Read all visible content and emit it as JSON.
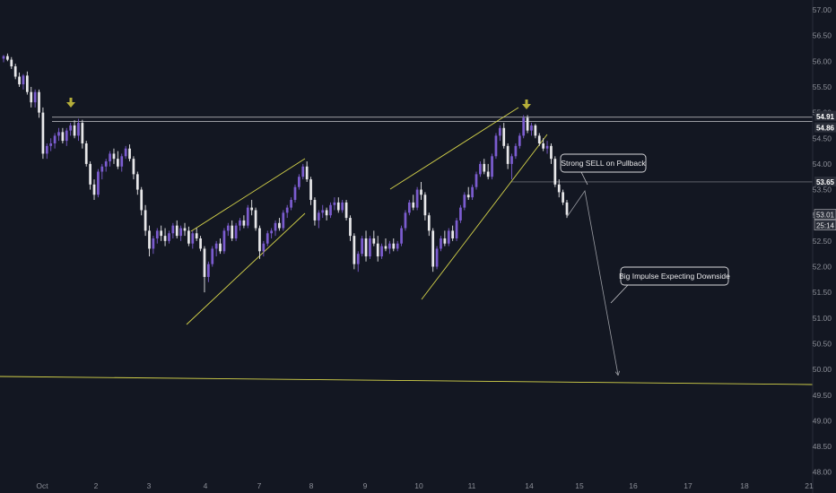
{
  "chart_data": {
    "type": "candlestick",
    "x_tick_labels": [
      "Oct",
      "2",
      "3",
      "4",
      "7",
      "8",
      "9",
      "10",
      "11",
      "14",
      "15",
      "16",
      "17",
      "18",
      "21"
    ],
    "y_tick_labels": [
      "48.00",
      "48.50",
      "49.00",
      "49.50",
      "50.00",
      "50.50",
      "51.00",
      "51.50",
      "52.00",
      "52.50",
      "53.00",
      "53.50",
      "54.00",
      "54.50",
      "55.00",
      "55.50",
      "56.00",
      "56.50",
      "57.00"
    ],
    "ylim": [
      48.0,
      57.0
    ],
    "price_labels": [
      {
        "value": 54.91,
        "label": "54.91",
        "style": "level"
      },
      {
        "value": 54.86,
        "label": "54.86",
        "style": "level"
      },
      {
        "value": 53.65,
        "label": "53.65",
        "style": "level"
      },
      {
        "value": 53.01,
        "label": "53.01",
        "style": "last"
      }
    ],
    "countdown_label": "25:14",
    "annotations": [
      {
        "id": "strong-sell",
        "text": "Strong SELL on Pullback"
      },
      {
        "id": "big-impulse",
        "text": "Big Impulse Expecting Downside"
      }
    ],
    "colors": {
      "background": "#131722",
      "bull_candle": "#7b5ccf",
      "bear_candle": "#e8e8ea",
      "trendline": "#d6d44a",
      "level_line": "#c8c8cc",
      "marker": "#b5ae3a",
      "axis_text": "#8c8f98"
    },
    "candles": [
      [
        56.05,
        56.12,
        55.98,
        56.1
      ],
      [
        56.1,
        56.15,
        56.0,
        56.03
      ],
      [
        56.03,
        56.08,
        55.85,
        55.9
      ],
      [
        55.9,
        55.95,
        55.65,
        55.7
      ],
      [
        55.7,
        55.78,
        55.5,
        55.55
      ],
      [
        55.55,
        55.75,
        55.45,
        55.72
      ],
      [
        55.72,
        55.8,
        55.35,
        55.4
      ],
      [
        55.4,
        55.5,
        55.1,
        55.2
      ],
      [
        55.2,
        55.45,
        55.1,
        55.4
      ],
      [
        55.4,
        55.45,
        54.9,
        55.0
      ],
      [
        55.0,
        55.1,
        54.1,
        54.2
      ],
      [
        54.2,
        54.4,
        54.1,
        54.35
      ],
      [
        54.35,
        54.5,
        54.25,
        54.4
      ],
      [
        54.4,
        54.6,
        54.3,
        54.55
      ],
      [
        54.55,
        54.7,
        54.45,
        54.62
      ],
      [
        54.62,
        54.7,
        54.4,
        54.45
      ],
      [
        54.45,
        54.7,
        54.35,
        54.65
      ],
      [
        54.65,
        54.8,
        54.55,
        54.75
      ],
      [
        54.75,
        54.85,
        54.5,
        54.55
      ],
      [
        54.55,
        54.88,
        54.45,
        54.8
      ],
      [
        54.8,
        54.86,
        54.3,
        54.4
      ],
      [
        54.4,
        54.45,
        53.95,
        54.0
      ],
      [
        54.0,
        54.05,
        53.5,
        53.6
      ],
      [
        53.6,
        53.7,
        53.3,
        53.4
      ],
      [
        53.4,
        53.9,
        53.35,
        53.85
      ],
      [
        53.85,
        54.0,
        53.7,
        53.95
      ],
      [
        53.95,
        54.1,
        53.85,
        54.05
      ],
      [
        54.05,
        54.25,
        53.95,
        54.2
      ],
      [
        54.2,
        54.3,
        54.0,
        54.1
      ],
      [
        54.1,
        54.25,
        53.9,
        53.95
      ],
      [
        53.95,
        54.2,
        53.85,
        54.15
      ],
      [
        54.15,
        54.35,
        54.1,
        54.3
      ],
      [
        54.3,
        54.38,
        54.05,
        54.1
      ],
      [
        54.1,
        54.15,
        53.7,
        53.8
      ],
      [
        53.8,
        53.85,
        53.4,
        53.5
      ],
      [
        53.5,
        53.55,
        53.0,
        53.1
      ],
      [
        53.1,
        53.2,
        52.6,
        52.7
      ],
      [
        52.7,
        52.8,
        52.2,
        52.35
      ],
      [
        52.35,
        52.6,
        52.25,
        52.55
      ],
      [
        52.55,
        52.75,
        52.45,
        52.7
      ],
      [
        52.7,
        52.8,
        52.5,
        52.6
      ],
      [
        52.6,
        52.75,
        52.4,
        52.5
      ],
      [
        52.5,
        52.7,
        52.45,
        52.65
      ],
      [
        52.65,
        52.85,
        52.55,
        52.8
      ],
      [
        52.8,
        52.9,
        52.55,
        52.6
      ],
      [
        52.6,
        52.8,
        52.5,
        52.75
      ],
      [
        52.75,
        52.85,
        52.6,
        52.7
      ],
      [
        52.7,
        52.78,
        52.4,
        52.45
      ],
      [
        52.45,
        52.7,
        52.35,
        52.65
      ],
      [
        52.65,
        52.75,
        52.5,
        52.55
      ],
      [
        52.55,
        52.6,
        52.3,
        52.35
      ],
      [
        52.35,
        52.4,
        51.5,
        51.8
      ],
      [
        51.8,
        52.1,
        51.7,
        52.05
      ],
      [
        52.05,
        52.4,
        52.0,
        52.35
      ],
      [
        52.35,
        52.5,
        52.2,
        52.45
      ],
      [
        52.45,
        52.55,
        52.25,
        52.3
      ],
      [
        52.3,
        52.75,
        52.25,
        52.7
      ],
      [
        52.7,
        52.85,
        52.6,
        52.8
      ],
      [
        52.8,
        52.9,
        52.5,
        52.55
      ],
      [
        52.55,
        52.85,
        52.5,
        52.8
      ],
      [
        52.8,
        52.95,
        52.7,
        52.9
      ],
      [
        52.9,
        53.0,
        52.75,
        52.8
      ],
      [
        52.8,
        53.2,
        52.75,
        53.15
      ],
      [
        53.15,
        53.3,
        53.0,
        53.1
      ],
      [
        53.1,
        53.15,
        52.7,
        52.75
      ],
      [
        52.75,
        52.8,
        52.15,
        52.3
      ],
      [
        52.3,
        52.5,
        52.2,
        52.45
      ],
      [
        52.45,
        52.7,
        52.4,
        52.65
      ],
      [
        52.65,
        52.75,
        52.55,
        52.7
      ],
      [
        52.7,
        52.9,
        52.6,
        52.85
      ],
      [
        52.85,
        52.95,
        52.7,
        52.75
      ],
      [
        52.75,
        53.1,
        52.7,
        53.05
      ],
      [
        53.05,
        53.2,
        52.95,
        53.15
      ],
      [
        53.15,
        53.35,
        53.1,
        53.3
      ],
      [
        53.3,
        53.6,
        53.25,
        53.55
      ],
      [
        53.55,
        53.8,
        53.5,
        53.75
      ],
      [
        53.75,
        54.0,
        53.7,
        53.95
      ],
      [
        53.95,
        54.05,
        53.65,
        53.7
      ],
      [
        53.7,
        53.75,
        53.2,
        53.3
      ],
      [
        53.3,
        53.35,
        52.8,
        52.9
      ],
      [
        52.9,
        53.1,
        52.75,
        53.05
      ],
      [
        53.05,
        53.2,
        52.95,
        53.1
      ],
      [
        53.1,
        53.15,
        52.9,
        53.0
      ],
      [
        53.0,
        53.25,
        52.95,
        53.2
      ],
      [
        53.2,
        53.35,
        53.1,
        53.25
      ],
      [
        53.25,
        53.35,
        53.05,
        53.1
      ],
      [
        53.1,
        53.3,
        53.05,
        53.25
      ],
      [
        53.25,
        53.3,
        52.9,
        52.95
      ],
      [
        52.95,
        53.0,
        52.5,
        52.6
      ],
      [
        52.6,
        52.65,
        51.95,
        52.05
      ],
      [
        52.05,
        52.3,
        51.9,
        52.25
      ],
      [
        52.25,
        52.6,
        52.2,
        52.55
      ],
      [
        52.55,
        52.7,
        52.1,
        52.2
      ],
      [
        52.2,
        52.6,
        52.15,
        52.55
      ],
      [
        52.55,
        52.7,
        52.4,
        52.45
      ],
      [
        52.45,
        52.6,
        52.1,
        52.2
      ],
      [
        52.2,
        52.45,
        52.15,
        52.4
      ],
      [
        52.4,
        52.55,
        52.3,
        52.35
      ],
      [
        52.35,
        52.5,
        52.25,
        52.45
      ],
      [
        52.45,
        52.55,
        52.3,
        52.35
      ],
      [
        52.35,
        52.5,
        52.3,
        52.45
      ],
      [
        52.45,
        52.8,
        52.4,
        52.75
      ],
      [
        52.75,
        53.1,
        52.7,
        53.05
      ],
      [
        53.05,
        53.3,
        53.0,
        53.25
      ],
      [
        53.25,
        53.4,
        53.1,
        53.15
      ],
      [
        53.15,
        53.55,
        53.1,
        53.5
      ],
      [
        53.5,
        53.65,
        53.3,
        53.4
      ],
      [
        53.4,
        53.45,
        52.9,
        53.0
      ],
      [
        53.0,
        53.05,
        52.6,
        52.7
      ],
      [
        52.7,
        52.75,
        51.9,
        52.0
      ],
      [
        52.0,
        52.4,
        51.95,
        52.35
      ],
      [
        52.35,
        52.6,
        52.3,
        52.55
      ],
      [
        52.55,
        52.7,
        52.4,
        52.45
      ],
      [
        52.45,
        52.75,
        52.4,
        52.7
      ],
      [
        52.7,
        52.8,
        52.5,
        52.55
      ],
      [
        52.55,
        52.95,
        52.5,
        52.9
      ],
      [
        52.9,
        53.2,
        52.85,
        53.15
      ],
      [
        53.15,
        53.45,
        53.1,
        53.4
      ],
      [
        53.4,
        53.55,
        53.3,
        53.35
      ],
      [
        53.35,
        53.6,
        53.3,
        53.55
      ],
      [
        53.55,
        53.85,
        53.5,
        53.8
      ],
      [
        53.8,
        54.05,
        53.75,
        54.0
      ],
      [
        54.0,
        54.1,
        53.8,
        53.85
      ],
      [
        53.85,
        54.0,
        53.7,
        53.75
      ],
      [
        53.75,
        54.2,
        53.7,
        54.15
      ],
      [
        54.15,
        54.6,
        54.1,
        54.55
      ],
      [
        54.55,
        54.75,
        54.45,
        54.7
      ],
      [
        54.7,
        54.8,
        54.3,
        54.35
      ],
      [
        54.35,
        54.4,
        53.9,
        54.0
      ],
      [
        54.0,
        54.2,
        53.7,
        54.15
      ],
      [
        54.15,
        54.4,
        54.1,
        54.35
      ],
      [
        54.35,
        54.6,
        54.3,
        54.55
      ],
      [
        54.55,
        54.95,
        54.5,
        54.9
      ],
      [
        54.9,
        54.95,
        54.6,
        54.65
      ],
      [
        54.65,
        54.8,
        54.55,
        54.75
      ],
      [
        54.75,
        54.78,
        54.5,
        54.55
      ],
      [
        54.55,
        54.6,
        54.35,
        54.4
      ],
      [
        54.4,
        54.5,
        54.25,
        54.3
      ],
      [
        54.3,
        54.45,
        54.2,
        54.35
      ],
      [
        54.35,
        54.4,
        54.0,
        54.1
      ],
      [
        54.1,
        54.15,
        53.55,
        53.6
      ],
      [
        53.6,
        53.7,
        53.35,
        53.45
      ],
      [
        53.45,
        53.5,
        53.2,
        53.25
      ],
      [
        53.25,
        53.3,
        52.95,
        53.01
      ]
    ]
  }
}
